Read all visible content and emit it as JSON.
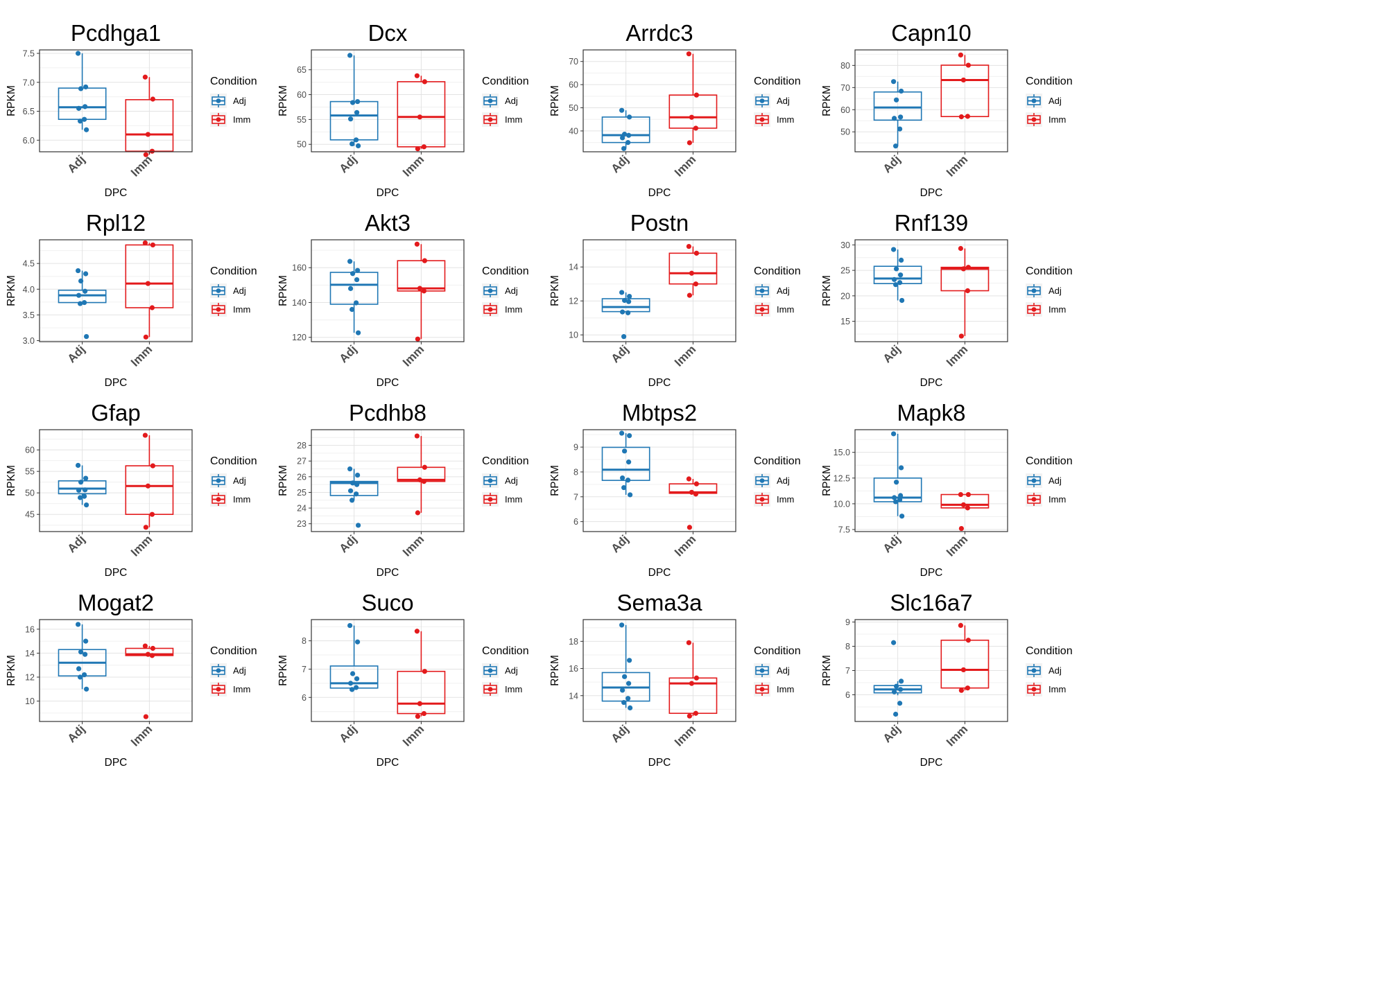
{
  "colors": {
    "Adj": "#1f77b4",
    "Imm": "#e31a1c"
  },
  "legend": {
    "title": "Condition",
    "items": [
      "Adj",
      "Imm"
    ]
  },
  "chart_data": [
    {
      "type": "box",
      "title": "Pcdhga1",
      "xlabel": "DPC",
      "ylabel": "RPKM",
      "categories": [
        "Adj",
        "Imm"
      ],
      "ylim": [
        5.8,
        7.56
      ],
      "yticks": [
        6.0,
        6.5,
        7.0,
        7.5
      ],
      "ytick_labels": [
        "6.0",
        "6.5",
        "7.0",
        "7.5"
      ],
      "groups": [
        {
          "name": "Adj",
          "q1": 6.36,
          "median": 6.57,
          "q3": 6.9,
          "whisker_low": 6.18,
          "whisker_high": 7.5,
          "points": [
            7.5,
            6.92,
            6.89,
            6.58,
            6.55,
            6.36,
            6.33,
            6.18
          ]
        },
        {
          "name": "Imm",
          "q1": 5.81,
          "median": 6.1,
          "q3": 6.7,
          "whisker_low": 5.75,
          "whisker_high": 7.09,
          "points": [
            7.09,
            6.71,
            6.1,
            5.81,
            5.75
          ]
        }
      ]
    },
    {
      "type": "box",
      "title": "Dcx",
      "xlabel": "DPC",
      "ylabel": "RPKM",
      "categories": [
        "Adj",
        "Imm"
      ],
      "ylim": [
        48.5,
        69
      ],
      "yticks": [
        50,
        55,
        60,
        65
      ],
      "ytick_labels": [
        "50",
        "55",
        "60",
        "65"
      ],
      "groups": [
        {
          "name": "Adj",
          "q1": 50.9,
          "median": 55.8,
          "q3": 58.6,
          "whisker_low": 49.7,
          "whisker_high": 67.9,
          "points": [
            67.9,
            58.6,
            58.4,
            56.4,
            55.1,
            50.9,
            50.1,
            49.7
          ]
        },
        {
          "name": "Imm",
          "q1": 49.5,
          "median": 55.5,
          "q3": 62.6,
          "whisker_low": 49.1,
          "whisker_high": 63.8,
          "points": [
            63.8,
            62.6,
            55.5,
            49.5,
            49.1
          ]
        }
      ]
    },
    {
      "type": "box",
      "title": "Arrdc3",
      "xlabel": "DPC",
      "ylabel": "RPKM",
      "categories": [
        "Adj",
        "Imm"
      ],
      "ylim": [
        31,
        75
      ],
      "yticks": [
        40,
        50,
        60,
        70
      ],
      "ytick_labels": [
        "40",
        "50",
        "60",
        "70"
      ],
      "groups": [
        {
          "name": "Adj",
          "q1": 35.0,
          "median": 38.2,
          "q3": 46.0,
          "whisker_low": 32.4,
          "whisker_high": 48.9,
          "points": [
            48.9,
            46.0,
            38.6,
            38.1,
            37.0,
            35.0,
            32.4
          ]
        },
        {
          "name": "Imm",
          "q1": 41.2,
          "median": 45.9,
          "q3": 55.5,
          "whisker_low": 34.9,
          "whisker_high": 73.3,
          "points": [
            73.3,
            55.5,
            45.9,
            41.2,
            34.9
          ]
        }
      ]
    },
    {
      "type": "box",
      "title": "Capn10",
      "xlabel": "DPC",
      "ylabel": "RPKM",
      "categories": [
        "Adj",
        "Imm"
      ],
      "ylim": [
        41,
        87
      ],
      "yticks": [
        50,
        60,
        70,
        80
      ],
      "ytick_labels": [
        "50",
        "60",
        "70",
        "80"
      ],
      "groups": [
        {
          "name": "Adj",
          "q1": 55.3,
          "median": 61.0,
          "q3": 68.0,
          "whisker_low": 43.6,
          "whisker_high": 72.7,
          "points": [
            72.7,
            68.4,
            64.4,
            56.7,
            56.1,
            51.3,
            43.6
          ]
        },
        {
          "name": "Imm",
          "q1": 56.9,
          "median": 73.4,
          "q3": 80.1,
          "whisker_low": 56.9,
          "whisker_high": 84.7,
          "points": [
            84.7,
            80.1,
            73.4,
            57.0,
            56.8
          ]
        }
      ]
    },
    {
      "type": "box",
      "title": "Rpl12",
      "xlabel": "DPC",
      "ylabel": "RPKM",
      "categories": [
        "Adj",
        "Imm"
      ],
      "ylim": [
        2.98,
        4.96
      ],
      "yticks": [
        3.0,
        3.5,
        4.0,
        4.5
      ],
      "ytick_labels": [
        "3.0",
        "3.5",
        "4.0",
        "4.5"
      ],
      "groups": [
        {
          "name": "Adj",
          "q1": 3.74,
          "median": 3.88,
          "q3": 3.98,
          "whisker_low": 3.72,
          "whisker_high": 4.36,
          "points": [
            4.36,
            4.3,
            4.16,
            3.96,
            3.88,
            3.74,
            3.72,
            3.08
          ]
        },
        {
          "name": "Imm",
          "q1": 3.64,
          "median": 4.11,
          "q3": 4.86,
          "whisker_low": 3.07,
          "whisker_high": 4.9,
          "points": [
            4.9,
            4.86,
            4.11,
            3.64,
            3.07
          ]
        }
      ]
    },
    {
      "type": "box",
      "title": "Akt3",
      "xlabel": "DPC",
      "ylabel": "RPKM",
      "categories": [
        "Adj",
        "Imm"
      ],
      "ylim": [
        117.5,
        176
      ],
      "yticks": [
        120,
        140,
        160
      ],
      "ytick_labels": [
        "120",
        "140",
        "160"
      ],
      "groups": [
        {
          "name": "Adj",
          "q1": 139.0,
          "median": 150.2,
          "q3": 157.3,
          "whisker_low": 122.6,
          "whisker_high": 163.6,
          "points": [
            163.6,
            158.4,
            156.6,
            153.1,
            148.0,
            139.8,
            136.0,
            122.6
          ]
        },
        {
          "name": "Imm",
          "q1": 146.6,
          "median": 148.1,
          "q3": 164.0,
          "whisker_low": 119.0,
          "whisker_high": 173.5,
          "points": [
            173.5,
            164.0,
            148.1,
            146.6,
            119.0
          ]
        }
      ]
    },
    {
      "type": "box",
      "title": "Postn",
      "xlabel": "DPC",
      "ylabel": "RPKM",
      "categories": [
        "Adj",
        "Imm"
      ],
      "ylim": [
        9.6,
        15.6
      ],
      "yticks": [
        10,
        12,
        14
      ],
      "ytick_labels": [
        "10",
        "12",
        "14"
      ],
      "groups": [
        {
          "name": "Adj",
          "q1": 11.37,
          "median": 11.64,
          "q3": 12.13,
          "whisker_low": 11.3,
          "whisker_high": 12.5,
          "points": [
            12.5,
            12.27,
            12.03,
            11.96,
            11.35,
            11.3,
            9.9
          ]
        },
        {
          "name": "Imm",
          "q1": 13.0,
          "median": 13.63,
          "q3": 14.81,
          "whisker_low": 12.33,
          "whisker_high": 15.21,
          "points": [
            15.21,
            14.81,
            13.63,
            13.0,
            12.33
          ]
        }
      ]
    },
    {
      "type": "box",
      "title": "Rnf139",
      "xlabel": "DPC",
      "ylabel": "RPKM",
      "categories": [
        "Adj",
        "Imm"
      ],
      "ylim": [
        11,
        31
      ],
      "yticks": [
        15,
        20,
        25,
        30
      ],
      "ytick_labels": [
        "15",
        "20",
        "25",
        "30"
      ],
      "groups": [
        {
          "name": "Adj",
          "q1": 22.4,
          "median": 23.4,
          "q3": 25.8,
          "whisker_low": 19.1,
          "whisker_high": 29.1,
          "points": [
            29.1,
            27.0,
            25.3,
            24.1,
            23.2,
            22.6,
            22.2,
            19.1
          ]
        },
        {
          "name": "Imm",
          "q1": 21.0,
          "median": 25.3,
          "q3": 25.6,
          "whisker_low": 12.1,
          "whisker_high": 29.3,
          "points": [
            29.3,
            25.6,
            25.3,
            21.0,
            12.1
          ]
        }
      ]
    },
    {
      "type": "box",
      "title": "Gfap",
      "xlabel": "DPC",
      "ylabel": "RPKM",
      "categories": [
        "Adj",
        "Imm"
      ],
      "ylim": [
        41,
        64.7
      ],
      "yticks": [
        45,
        50,
        55,
        60
      ],
      "ytick_labels": [
        "45",
        "50",
        "55",
        "60"
      ],
      "groups": [
        {
          "name": "Adj",
          "q1": 49.8,
          "median": 51.0,
          "q3": 52.8,
          "whisker_low": 47.2,
          "whisker_high": 56.4,
          "points": [
            56.4,
            53.4,
            52.5,
            50.7,
            50.6,
            49.2,
            48.9,
            47.2
          ]
        },
        {
          "name": "Imm",
          "q1": 45.0,
          "median": 51.6,
          "q3": 56.3,
          "whisker_low": 42.0,
          "whisker_high": 63.4,
          "points": [
            63.4,
            56.3,
            51.6,
            45.0,
            42.0
          ]
        }
      ]
    },
    {
      "type": "box",
      "title": "Pcdhb8",
      "xlabel": "DPC",
      "ylabel": "RPKM",
      "categories": [
        "Adj",
        "Imm"
      ],
      "ylim": [
        22.5,
        29.0
      ],
      "yticks": [
        23,
        24,
        25,
        26,
        27,
        28
      ],
      "ytick_labels": [
        "23",
        "24",
        "25",
        "26",
        "27",
        "28"
      ],
      "groups": [
        {
          "name": "Adj",
          "q1": 24.8,
          "median": 25.6,
          "q3": 25.7,
          "whisker_low": 24.5,
          "whisker_high": 26.5,
          "points": [
            26.5,
            26.1,
            25.6,
            25.5,
            25.1,
            24.9,
            24.5,
            22.9
          ]
        },
        {
          "name": "Imm",
          "q1": 25.7,
          "median": 25.8,
          "q3": 26.6,
          "whisker_low": 23.7,
          "whisker_high": 28.6,
          "points": [
            28.6,
            26.6,
            25.8,
            25.7,
            23.7
          ]
        }
      ]
    },
    {
      "type": "box",
      "title": "Mbtps2",
      "xlabel": "DPC",
      "ylabel": "RPKM",
      "categories": [
        "Adj",
        "Imm"
      ],
      "ylim": [
        5.6,
        9.7
      ],
      "yticks": [
        6,
        7,
        8,
        9
      ],
      "ytick_labels": [
        "6",
        "7",
        "8",
        "9"
      ],
      "groups": [
        {
          "name": "Adj",
          "q1": 7.66,
          "median": 8.09,
          "q3": 8.99,
          "whisker_low": 7.08,
          "whisker_high": 9.56,
          "points": [
            9.56,
            9.46,
            8.84,
            8.4,
            7.76,
            7.67,
            7.37,
            7.08
          ]
        },
        {
          "name": "Imm",
          "q1": 7.14,
          "median": 7.18,
          "q3": 7.52,
          "whisker_low": 7.11,
          "whisker_high": 7.72,
          "points": [
            7.72,
            7.52,
            7.18,
            7.11,
            5.77
          ]
        }
      ]
    },
    {
      "type": "box",
      "title": "Mapk8",
      "xlabel": "DPC",
      "ylabel": "RPKM",
      "categories": [
        "Adj",
        "Imm"
      ],
      "ylim": [
        7.3,
        17.2
      ],
      "yticks": [
        7.5,
        10.0,
        12.5,
        15.0
      ],
      "ytick_labels": [
        "7.5",
        "10.0",
        "12.5",
        "15.0"
      ],
      "groups": [
        {
          "name": "Adj",
          "q1": 10.2,
          "median": 10.6,
          "q3": 12.5,
          "whisker_low": 8.8,
          "whisker_high": 16.8,
          "points": [
            16.8,
            13.5,
            12.1,
            10.8,
            10.6,
            10.4,
            10.2,
            8.8
          ]
        },
        {
          "name": "Imm",
          "q1": 9.6,
          "median": 9.9,
          "q3": 10.9,
          "whisker_low": 9.6,
          "whisker_high": 10.9,
          "points": [
            10.9,
            10.9,
            9.9,
            9.6,
            7.6
          ]
        }
      ]
    },
    {
      "type": "box",
      "title": "Mogat2",
      "xlabel": "DPC",
      "ylabel": "RPKM",
      "categories": [
        "Adj",
        "Imm"
      ],
      "ylim": [
        8.3,
        16.8
      ],
      "yticks": [
        10,
        12,
        14,
        16
      ],
      "ytick_labels": [
        "10",
        "12",
        "14",
        "16"
      ],
      "groups": [
        {
          "name": "Adj",
          "q1": 12.1,
          "median": 13.2,
          "q3": 14.3,
          "whisker_low": 11.0,
          "whisker_high": 16.4,
          "points": [
            16.4,
            15.0,
            14.1,
            13.9,
            12.7,
            12.2,
            12.0,
            11.0
          ]
        },
        {
          "name": "Imm",
          "q1": 13.8,
          "median": 13.9,
          "q3": 14.4,
          "whisker_low": 13.8,
          "whisker_high": 14.6,
          "points": [
            14.6,
            14.4,
            13.9,
            13.8,
            8.7
          ]
        }
      ]
    },
    {
      "type": "box",
      "title": "Suco",
      "xlabel": "DPC",
      "ylabel": "RPKM",
      "categories": [
        "Adj",
        "Imm"
      ],
      "ylim": [
        5.15,
        8.75
      ],
      "yticks": [
        6,
        7,
        8
      ],
      "ytick_labels": [
        "6",
        "7",
        "8"
      ],
      "groups": [
        {
          "name": "Adj",
          "q1": 6.33,
          "median": 6.5,
          "q3": 7.11,
          "whisker_low": 6.25,
          "whisker_high": 8.54,
          "points": [
            8.54,
            7.96,
            6.84,
            6.66,
            6.5,
            6.35,
            6.28
          ]
        },
        {
          "name": "Imm",
          "q1": 5.43,
          "median": 5.78,
          "q3": 6.92,
          "whisker_low": 5.33,
          "whisker_high": 8.34,
          "points": [
            8.34,
            6.92,
            5.78,
            5.43,
            5.33
          ]
        }
      ]
    },
    {
      "type": "box",
      "title": "Sema3a",
      "xlabel": "DPC",
      "ylabel": "RPKM",
      "categories": [
        "Adj",
        "Imm"
      ],
      "ylim": [
        12.1,
        19.6
      ],
      "yticks": [
        14,
        16,
        18
      ],
      "ytick_labels": [
        "14",
        "16",
        "18"
      ],
      "groups": [
        {
          "name": "Adj",
          "q1": 13.6,
          "median": 14.6,
          "q3": 15.7,
          "whisker_low": 13.1,
          "whisker_high": 19.2,
          "points": [
            19.2,
            16.6,
            15.4,
            14.9,
            14.4,
            13.8,
            13.5,
            13.1
          ]
        },
        {
          "name": "Imm",
          "q1": 12.7,
          "median": 14.9,
          "q3": 15.3,
          "whisker_low": 12.5,
          "whisker_high": 17.9,
          "points": [
            17.9,
            15.3,
            14.9,
            12.7,
            12.5
          ]
        }
      ]
    },
    {
      "type": "box",
      "title": "Slc16a7",
      "xlabel": "DPC",
      "ylabel": "RPKM",
      "categories": [
        "Adj",
        "Imm"
      ],
      "ylim": [
        4.9,
        9.1
      ],
      "yticks": [
        6,
        7,
        8,
        9
      ],
      "ytick_labels": [
        "6",
        "7",
        "8",
        "9"
      ],
      "groups": [
        {
          "name": "Adj",
          "q1": 6.08,
          "median": 6.22,
          "q3": 6.38,
          "whisker_low": 5.98,
          "whisker_high": 6.56,
          "points": [
            8.15,
            6.56,
            6.35,
            6.22,
            6.12,
            5.65,
            5.2
          ]
        },
        {
          "name": "Imm",
          "q1": 6.28,
          "median": 7.03,
          "q3": 8.25,
          "whisker_low": 6.18,
          "whisker_high": 8.86,
          "points": [
            8.86,
            8.25,
            7.03,
            6.28,
            6.18
          ]
        }
      ]
    }
  ]
}
